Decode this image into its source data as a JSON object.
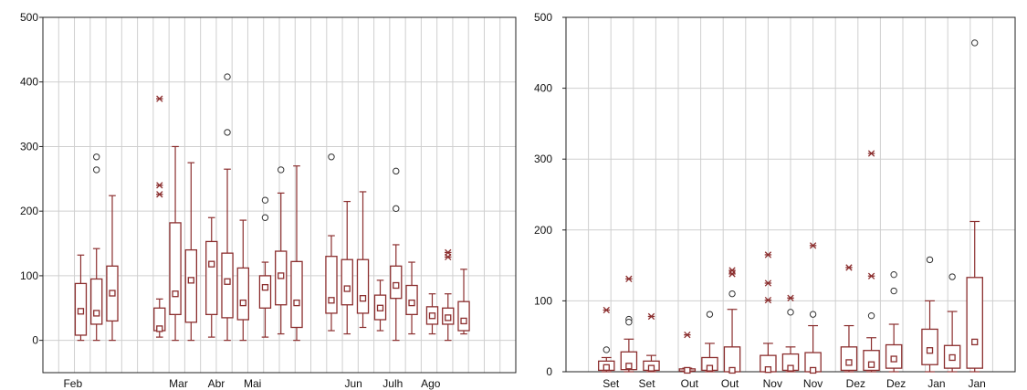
{
  "chart_data": [
    {
      "type": "box",
      "title": "",
      "xlabel": "",
      "ylabel": "",
      "ylim": [
        -50,
        500
      ],
      "yticks": [
        0,
        100,
        200,
        300,
        400,
        500
      ],
      "grid": true,
      "colors": {
        "box": "#8b2e2e",
        "outlier": "#8b2e2e",
        "grid": "#cfcfcf",
        "axis": "#222222"
      },
      "x_labels": [
        {
          "label": "Feb",
          "x": 1.9
        },
        {
          "label": "Mar",
          "x": 8.6
        },
        {
          "label": "Abr",
          "x": 11.0
        },
        {
          "label": "Mai",
          "x": 13.3
        },
        {
          "label": "Jun",
          "x": 19.7
        },
        {
          "label": "Julh",
          "x": 22.2
        },
        {
          "label": "Ago",
          "x": 24.6
        }
      ],
      "x_count": 30,
      "boxes": [
        {
          "x": 2.4,
          "min": 0,
          "q1": 8,
          "median": 45,
          "q3": 88,
          "max": 132,
          "outliers": []
        },
        {
          "x": 3.4,
          "min": 0,
          "q1": 25,
          "median": 42,
          "q3": 95,
          "max": 142,
          "outliers": [
            {
              "v": 284,
              "m": "o"
            },
            {
              "v": 264,
              "m": "o"
            }
          ]
        },
        {
          "x": 4.4,
          "min": 0,
          "q1": 30,
          "median": 73,
          "q3": 115,
          "max": 224,
          "outliers": []
        },
        {
          "x": 7.4,
          "min": 5,
          "q1": 15,
          "median": 18,
          "q3": 50,
          "max": 64,
          "outliers": [
            {
              "v": 374,
              "m": "*"
            },
            {
              "v": 240,
              "m": "*"
            },
            {
              "v": 226,
              "m": "*"
            }
          ]
        },
        {
          "x": 8.4,
          "min": 0,
          "q1": 40,
          "median": 72,
          "q3": 182,
          "max": 300,
          "outliers": []
        },
        {
          "x": 9.4,
          "min": 0,
          "q1": 28,
          "median": 93,
          "q3": 140,
          "max": 275,
          "outliers": []
        },
        {
          "x": 10.7,
          "min": 5,
          "q1": 40,
          "median": 118,
          "q3": 153,
          "max": 190,
          "outliers": []
        },
        {
          "x": 11.7,
          "min": 0,
          "q1": 35,
          "median": 91,
          "q3": 135,
          "max": 265,
          "outliers": [
            {
              "v": 408,
              "m": "o"
            },
            {
              "v": 322,
              "m": "o"
            }
          ]
        },
        {
          "x": 12.7,
          "min": 0,
          "q1": 32,
          "median": 58,
          "q3": 112,
          "max": 186,
          "outliers": []
        },
        {
          "x": 14.1,
          "min": 5,
          "q1": 50,
          "median": 82,
          "q3": 100,
          "max": 121,
          "outliers": [
            {
              "v": 217,
              "m": "o"
            },
            {
              "v": 190,
              "m": "o"
            }
          ]
        },
        {
          "x": 15.1,
          "min": 10,
          "q1": 55,
          "median": 100,
          "q3": 138,
          "max": 228,
          "outliers": [
            {
              "v": 264,
              "m": "o"
            }
          ]
        },
        {
          "x": 16.1,
          "min": 0,
          "q1": 20,
          "median": 58,
          "q3": 122,
          "max": 270,
          "outliers": []
        },
        {
          "x": 18.3,
          "min": 15,
          "q1": 42,
          "median": 62,
          "q3": 130,
          "max": 162,
          "outliers": [
            {
              "v": 284,
              "m": "o"
            }
          ]
        },
        {
          "x": 19.3,
          "min": 10,
          "q1": 55,
          "median": 80,
          "q3": 125,
          "max": 215,
          "outliers": []
        },
        {
          "x": 20.3,
          "min": 20,
          "q1": 42,
          "median": 65,
          "q3": 125,
          "max": 230,
          "outliers": []
        },
        {
          "x": 21.4,
          "min": 15,
          "q1": 32,
          "median": 50,
          "q3": 70,
          "max": 93,
          "outliers": []
        },
        {
          "x": 22.4,
          "min": 0,
          "q1": 65,
          "median": 85,
          "q3": 115,
          "max": 148,
          "outliers": [
            {
              "v": 262,
              "m": "o"
            },
            {
              "v": 204,
              "m": "o"
            }
          ]
        },
        {
          "x": 23.4,
          "min": 10,
          "q1": 40,
          "median": 58,
          "q3": 85,
          "max": 121,
          "outliers": []
        },
        {
          "x": 24.7,
          "min": 10,
          "q1": 25,
          "median": 38,
          "q3": 52,
          "max": 72,
          "outliers": []
        },
        {
          "x": 25.7,
          "min": 0,
          "q1": 25,
          "median": 35,
          "q3": 50,
          "max": 72,
          "outliers": [
            {
              "v": 136,
              "m": "*"
            },
            {
              "v": 129,
              "m": "*"
            }
          ]
        },
        {
          "x": 26.7,
          "min": 10,
          "q1": 15,
          "median": 30,
          "q3": 60,
          "max": 110,
          "outliers": []
        }
      ]
    },
    {
      "type": "box",
      "title": "",
      "xlabel": "",
      "ylabel": "",
      "ylim": [
        0,
        500
      ],
      "yticks": [
        0,
        100,
        200,
        300,
        400,
        500
      ],
      "grid": true,
      "colors": {
        "box": "#8b2e2e",
        "outlier": "#8b2e2e",
        "grid": "#cfcfcf",
        "axis": "#222222"
      },
      "x_labels": [
        {
          "label": "Set",
          "x": 2.0
        },
        {
          "label": "Set",
          "x": 3.6
        },
        {
          "label": "Out",
          "x": 5.5
        },
        {
          "label": "Out",
          "x": 7.3
        },
        {
          "label": "Nov",
          "x": 9.2
        },
        {
          "label": "Nov",
          "x": 11.0
        },
        {
          "label": "Dez",
          "x": 12.9
        },
        {
          "label": "Dez",
          "x": 14.7
        },
        {
          "label": "Jan",
          "x": 16.5
        },
        {
          "label": "Jan",
          "x": 18.3
        }
      ],
      "x_count": 20,
      "boxes": [
        {
          "x": 1.8,
          "min": 0,
          "q1": 2,
          "median": 6,
          "q3": 15,
          "max": 20,
          "outliers": [
            {
              "v": 87,
              "m": "*"
            },
            {
              "v": 31,
              "m": "o"
            }
          ]
        },
        {
          "x": 2.8,
          "min": 0,
          "q1": 3,
          "median": 8,
          "q3": 28,
          "max": 46,
          "outliers": [
            {
              "v": 131,
              "m": "*"
            },
            {
              "v": 74,
              "m": "o"
            },
            {
              "v": 70,
              "m": "o"
            }
          ]
        },
        {
          "x": 3.8,
          "min": 0,
          "q1": 2,
          "median": 5,
          "q3": 15,
          "max": 23,
          "outliers": [
            {
              "v": 78,
              "m": "*"
            }
          ]
        },
        {
          "x": 5.4,
          "min": 0,
          "q1": 1,
          "median": 2,
          "q3": 4,
          "max": 5,
          "outliers": [
            {
              "v": 52,
              "m": "*"
            }
          ]
        },
        {
          "x": 6.4,
          "min": 0,
          "q1": 2,
          "median": 5,
          "q3": 20,
          "max": 40,
          "outliers": [
            {
              "v": 81,
              "m": "o"
            }
          ]
        },
        {
          "x": 7.4,
          "min": 0,
          "q1": 0,
          "median": 2,
          "q3": 35,
          "max": 88,
          "outliers": [
            {
              "v": 143,
              "m": "*"
            },
            {
              "v": 138,
              "m": "*"
            },
            {
              "v": 110,
              "m": "o"
            }
          ]
        },
        {
          "x": 9.0,
          "min": 0,
          "q1": 0,
          "median": 3,
          "q3": 23,
          "max": 40,
          "outliers": [
            {
              "v": 165,
              "m": "*"
            },
            {
              "v": 125,
              "m": "*"
            },
            {
              "v": 101,
              "m": "*"
            }
          ]
        },
        {
          "x": 10.0,
          "min": 0,
          "q1": 2,
          "median": 5,
          "q3": 25,
          "max": 35,
          "outliers": [
            {
              "v": 104,
              "m": "*"
            },
            {
              "v": 84,
              "m": "o"
            }
          ]
        },
        {
          "x": 11.0,
          "min": 0,
          "q1": 0,
          "median": 2,
          "q3": 27,
          "max": 65,
          "outliers": [
            {
              "v": 178,
              "m": "*"
            },
            {
              "v": 81,
              "m": "o"
            }
          ]
        },
        {
          "x": 12.6,
          "min": 0,
          "q1": 2,
          "median": 13,
          "q3": 35,
          "max": 65,
          "outliers": [
            {
              "v": 147,
              "m": "*"
            }
          ]
        },
        {
          "x": 13.6,
          "min": 0,
          "q1": 2,
          "median": 10,
          "q3": 30,
          "max": 48,
          "outliers": [
            {
              "v": 308,
              "m": "*"
            },
            {
              "v": 135,
              "m": "*"
            },
            {
              "v": 79,
              "m": "o"
            }
          ]
        },
        {
          "x": 14.6,
          "min": 0,
          "q1": 5,
          "median": 18,
          "q3": 38,
          "max": 67,
          "outliers": [
            {
              "v": 137,
              "m": "o"
            },
            {
              "v": 114,
              "m": "o"
            }
          ]
        },
        {
          "x": 16.2,
          "min": 0,
          "q1": 10,
          "median": 30,
          "q3": 60,
          "max": 100,
          "outliers": [
            {
              "v": 158,
              "m": "o"
            }
          ]
        },
        {
          "x": 17.2,
          "min": 0,
          "q1": 5,
          "median": 20,
          "q3": 37,
          "max": 85,
          "outliers": [
            {
              "v": 134,
              "m": "o"
            }
          ]
        },
        {
          "x": 18.2,
          "min": 0,
          "q1": 5,
          "median": 42,
          "q3": 133,
          "max": 212,
          "outliers": [
            {
              "v": 464,
              "m": "o"
            }
          ]
        }
      ]
    }
  ]
}
